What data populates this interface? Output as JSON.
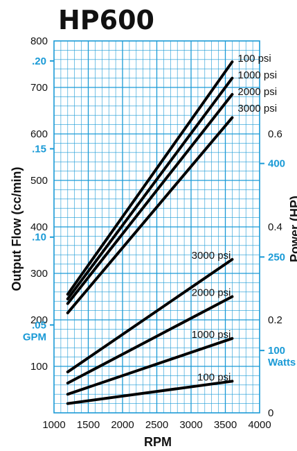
{
  "chart_data": {
    "type": "line",
    "title": "HP600",
    "xlabel": "RPM",
    "ylabel": "Output Flow (cc/min)",
    "right_label": "Power (HP)",
    "xlim": [
      1000,
      4000
    ],
    "x_ticks": [
      "1000",
      "1500",
      "2000",
      "2500",
      "3000",
      "3500",
      "4000"
    ],
    "ylim": [
      0,
      800
    ],
    "y_ticks": [
      "100",
      "200",
      "300",
      "400",
      "500",
      "600",
      "700",
      "800"
    ],
    "y_gpm_ticks": [
      {
        "label": ".05",
        "value": 189
      },
      {
        "label": ".10",
        "value": 378
      },
      {
        "label": ".15",
        "value": 568
      },
      {
        "label": ".20",
        "value": 757
      }
    ],
    "gpm_unit": "GPM",
    "hp_ticks": [
      {
        "label": "0",
        "value": 0
      },
      {
        "label": "0.2",
        "value": 0.2
      },
      {
        "label": "0.4",
        "value": 0.4
      },
      {
        "label": "0.6",
        "value": 0.6
      }
    ],
    "hp_range": [
      0,
      0.8
    ],
    "watts_ticks": [
      {
        "label": "100",
        "value": 100
      },
      {
        "label": "250",
        "value": 250
      },
      {
        "label": "400",
        "value": 400
      }
    ],
    "watts_unit": "Watts",
    "flow_series": [
      {
        "name": "100 psi",
        "x": [
          1200,
          3600
        ],
        "y": [
          255,
          755
        ]
      },
      {
        "name": "1000 psi",
        "x": [
          1200,
          3600
        ],
        "y": [
          245,
          720
        ]
      },
      {
        "name": "2000 psi",
        "x": [
          1200,
          3600
        ],
        "y": [
          235,
          685
        ]
      },
      {
        "name": "3000 psi",
        "x": [
          1200,
          3600
        ],
        "y": [
          215,
          635
        ]
      }
    ],
    "power_series": [
      {
        "name": "3000 psi",
        "x": [
          1200,
          3600
        ],
        "y": [
          0.088,
          0.33
        ]
      },
      {
        "name": "2000 psi",
        "x": [
          1200,
          3600
        ],
        "y": [
          0.064,
          0.25
        ]
      },
      {
        "name": "1000 psi",
        "x": [
          1200,
          3600
        ],
        "y": [
          0.04,
          0.16
        ]
      },
      {
        "name": "100 psi",
        "x": [
          1200,
          3600
        ],
        "y": [
          0.02,
          0.068
        ]
      }
    ],
    "grid": true,
    "colors": {
      "grid": "#1a9ad6",
      "curve": "#000000",
      "secondary_text": "#1a9ad6"
    }
  }
}
